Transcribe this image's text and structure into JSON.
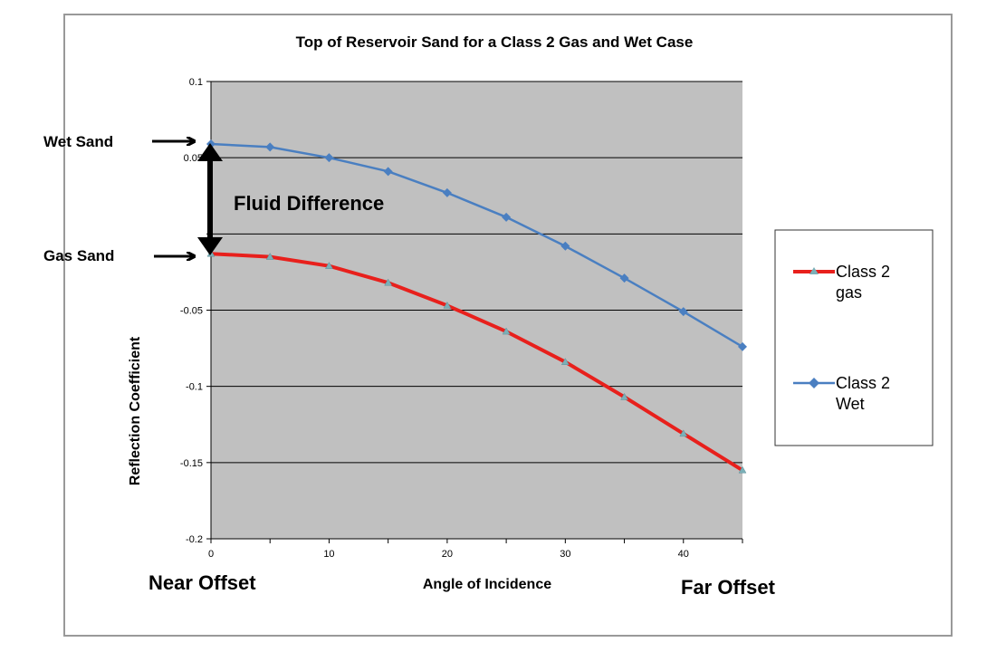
{
  "chart_data": {
    "type": "line",
    "title": "Top of Reservoir  Sand for  a Class  2 Gas and Wet Case",
    "xlabel": "Angle  of Incidence",
    "ylabel": "Reflection  Coefficient",
    "xlim": [
      0,
      45
    ],
    "ylim": [
      -0.2,
      0.1
    ],
    "x_ticks": [
      "0",
      "10",
      "20",
      "30",
      "40"
    ],
    "y_ticks": [
      "0.1",
      "0.05",
      "-0.05",
      "-0.1",
      "-0.15",
      "-0.2"
    ],
    "x": [
      0,
      5,
      10,
      15,
      20,
      25,
      30,
      35,
      40,
      45
    ],
    "series": [
      {
        "name": "Class 2 gas",
        "color": "#e8201c",
        "marker": "triangle",
        "values": [
          -0.013,
          -0.015,
          -0.021,
          -0.032,
          -0.047,
          -0.064,
          -0.084,
          -0.107,
          -0.131,
          -0.155
        ]
      },
      {
        "name": "Class 2 Wet",
        "color": "#4a7fc1",
        "marker": "diamond",
        "values": [
          0.059,
          0.057,
          0.05,
          0.041,
          0.027,
          0.011,
          -0.008,
          -0.029,
          -0.051,
          -0.074
        ]
      }
    ],
    "legend_position": "right",
    "grid": true,
    "plot_background": "#c0c0c0",
    "annotations": {
      "wet_sand": "Wet Sand",
      "gas_sand": "Gas Sand",
      "fluid_difference": "Fluid Difference",
      "near_offset": "Near Offset",
      "far_offset": "Far Offset"
    }
  }
}
